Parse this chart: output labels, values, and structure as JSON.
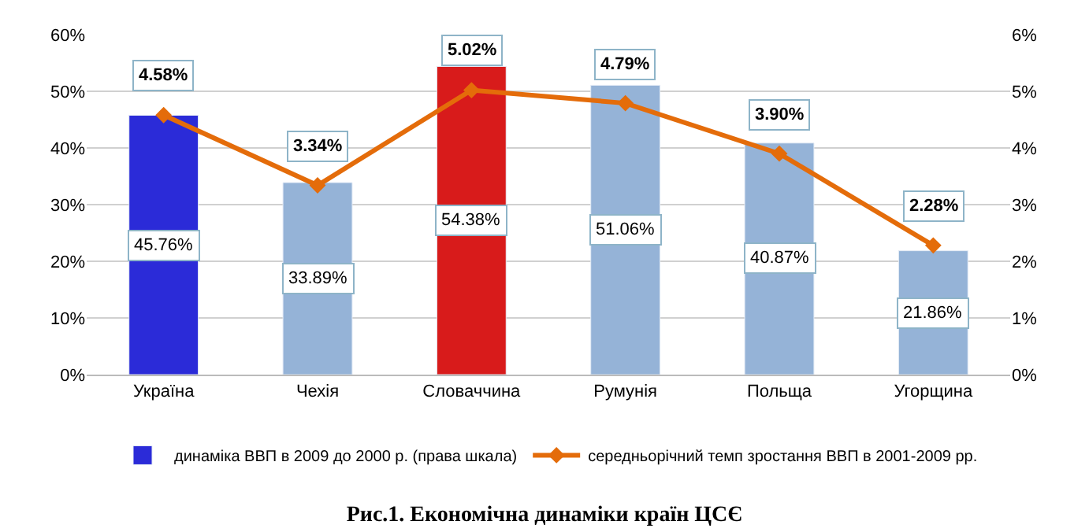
{
  "chart_data": {
    "type": "bar",
    "title": "Рис.1. Економічна динаміки країн ЦСЄ",
    "categories": [
      "Україна",
      "Чехія",
      "Словаччина",
      "Румунія",
      "Польща",
      "Угорщина"
    ],
    "series": [
      {
        "name": "динаміка ВВП в 2009 до 2000 р. (права шкала)",
        "color": "#95b3d7",
        "colors": [
          "#2b2bd8",
          "#95b3d7",
          "#d81b1b",
          "#95b3d7",
          "#95b3d7",
          "#95b3d7"
        ],
        "values": [
          45.76,
          33.89,
          54.38,
          51.06,
          40.87,
          21.86
        ],
        "value_labels": [
          "45.76%",
          "33.89%",
          "54.38%",
          "51.06%",
          "40.87%",
          "21.86%"
        ]
      },
      {
        "name": "середньорічний темп зростання ВВП в 2001-2009 рр.",
        "type": "line",
        "axis": "y2",
        "color": "#e46c0a",
        "marker": "diamond",
        "values": [
          4.58,
          3.34,
          5.02,
          4.79,
          3.9,
          2.28
        ],
        "value_labels": [
          "4.58%",
          "3.34%",
          "5.02%",
          "4.79%",
          "3.90%",
          "2.28%"
        ]
      }
    ],
    "ylim": [
      0,
      60
    ],
    "yticks": [
      {
        "value": 0,
        "label": "0%"
      },
      {
        "value": 10,
        "label": "10%"
      },
      {
        "value": 20,
        "label": "20%"
      },
      {
        "value": 30,
        "label": "30%"
      },
      {
        "value": 40,
        "label": "40%"
      },
      {
        "value": 50,
        "label": "50%"
      },
      {
        "value": 60,
        "label": "60%"
      }
    ],
    "y2lim": [
      0,
      6
    ],
    "y2ticks": [
      {
        "value": 0,
        "label": "0%"
      },
      {
        "value": 1,
        "label": "1%"
      },
      {
        "value": 2,
        "label": "2%"
      },
      {
        "value": 3,
        "label": "3%"
      },
      {
        "value": 4,
        "label": "4%"
      },
      {
        "value": 5,
        "label": "5%"
      },
      {
        "value": 6,
        "label": "6%"
      }
    ],
    "grid": "y",
    "legend": "bottom"
  }
}
